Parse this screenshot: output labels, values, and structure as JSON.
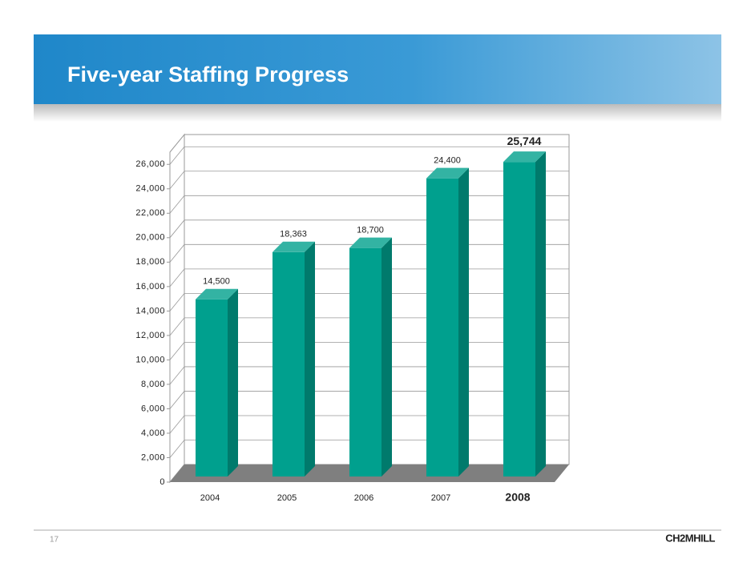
{
  "slide_title": "Five-year Staffing Progress",
  "page_number": "17",
  "logo": "CH2MHILL",
  "chart_data": {
    "type": "bar3d",
    "categories": [
      "2004",
      "2005",
      "2006",
      "2007",
      "2008"
    ],
    "values": [
      14500,
      18363,
      18700,
      24400,
      25744
    ],
    "value_labels": [
      "14,500",
      "18,363",
      "18,700",
      "24,400",
      "25,744"
    ],
    "color": "#00a08e",
    "ylim": [
      0,
      27000
    ],
    "yticks": [
      0,
      {
        "value": 2000,
        "label": "2,000"
      },
      {
        "value": 4000,
        "label": "4,000"
      },
      {
        "value": 6000,
        "label": "6,000"
      },
      {
        "value": 8000,
        "label": "8,000"
      },
      {
        "value": 10000,
        "label": "10,000"
      },
      {
        "value": 12000,
        "label": "12,000"
      },
      {
        "value": 14000,
        "label": "14,000"
      },
      {
        "value": 16000,
        "label": "16,000"
      },
      {
        "value": 18000,
        "label": "18,000"
      },
      {
        "value": 20000,
        "label": "20,000"
      },
      {
        "value": 22000,
        "label": "22,000"
      },
      {
        "value": 24000,
        "label": "24,000"
      },
      {
        "value": 26000,
        "label": "26,000"
      }
    ],
    "grid": true
  }
}
